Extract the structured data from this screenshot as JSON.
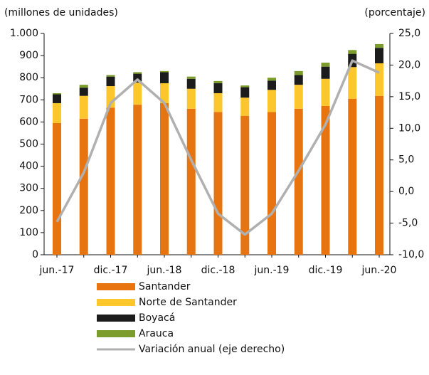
{
  "chart_data": {
    "type": "bar",
    "stacked": true,
    "y_label": "(millones  de unidades)",
    "y2_label": "(porcentaje)",
    "categories": [
      "jun.-17",
      null,
      "dic.-17",
      null,
      "jun.-18",
      null,
      "dic.-18",
      null,
      "jun.-19",
      null,
      "dic.-19",
      null,
      "jun.-20"
    ],
    "series": [
      {
        "name": "Santander",
        "color": "#e8740f",
        "values": [
          595,
          615,
          665,
          678,
          685,
          660,
          645,
          628,
          645,
          660,
          672,
          705,
          718
        ]
      },
      {
        "name": "Norte de Santander",
        "color": "#fcc72c",
        "values": [
          90,
          103,
          97,
          100,
          90,
          90,
          85,
          82,
          100,
          108,
          123,
          143,
          147
        ]
      },
      {
        "name": "Boyacá",
        "color": "#1c1c1c",
        "values": [
          40,
          37,
          43,
          40,
          50,
          45,
          45,
          47,
          42,
          44,
          55,
          60,
          70
        ]
      },
      {
        "name": "Arauca",
        "color": "#7c9c2c",
        "values": [
          5,
          13,
          7,
          7,
          5,
          10,
          10,
          8,
          13,
          18,
          18,
          17,
          17
        ]
      },
      {
        "name": "Variación anual (eje derecho)",
        "color": "#b0b0b0",
        "type": "line",
        "axis": "y2",
        "values": [
          -4.8,
          3,
          14,
          17.7,
          14,
          5,
          -3.5,
          -6.8,
          -3.5,
          3.3,
          10.6,
          20.7,
          18.8
        ]
      }
    ],
    "ylim": [
      0,
      1000
    ],
    "yticks": [
      0,
      100,
      200,
      300,
      400,
      500,
      600,
      700,
      800,
      900,
      {
        "value": 1000,
        "label": "1.000"
      }
    ],
    "y2lim": [
      -10,
      25
    ],
    "y2ticks": [
      {
        "value": -10,
        "label": "-10,0"
      },
      {
        "value": -5,
        "label": "-5,0"
      },
      {
        "value": 0,
        "label": "0,0"
      },
      {
        "value": 5,
        "label": "5,0"
      },
      {
        "value": 10,
        "label": "10,0"
      },
      {
        "value": 15,
        "label": "15,0"
      },
      {
        "value": 20,
        "label": "20,0"
      },
      {
        "value": 25,
        "label": "25,0"
      }
    ]
  }
}
